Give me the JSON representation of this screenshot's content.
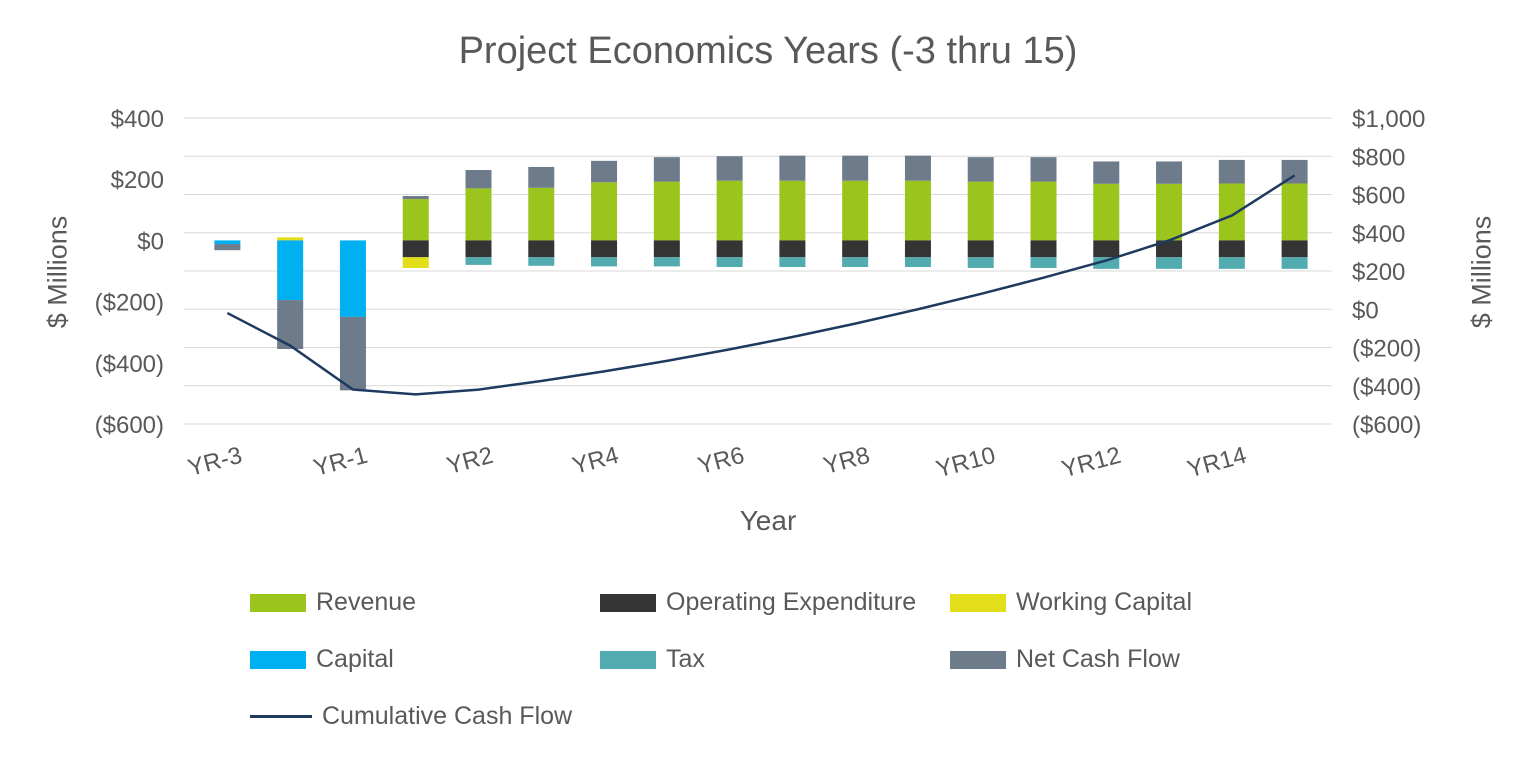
{
  "chart_data": {
    "type": "combo-stacked-bar-line",
    "title": "Project Economics Years (-3 thru 15)",
    "xlabel": "Year",
    "grid": "horizontal",
    "legend_position": "bottom-left",
    "colors": {
      "grid": "#D9D9D9",
      "text": "#595959"
    },
    "left_axis": {
      "label": "$ Millions",
      "min": -600,
      "max": 400,
      "tick_labels": [
        "$400",
        "$200",
        "$0",
        "($200)",
        "($400)",
        "($600)"
      ],
      "tick_values": [
        400,
        200,
        0,
        -200,
        -400,
        -600
      ]
    },
    "right_axis": {
      "label": "$ Millions",
      "min": -600,
      "max": 1000,
      "tick_labels": [
        "$1,000",
        "$800",
        "$600",
        "$400",
        "$200",
        "$0",
        "($200)",
        "($400)",
        "($600)"
      ],
      "tick_values": [
        1000,
        800,
        600,
        400,
        200,
        0,
        -200,
        -400,
        -600
      ]
    },
    "categories": [
      "YR-3",
      "YR-2",
      "YR-1",
      "YR1",
      "YR2",
      "YR3",
      "YR4",
      "YR5",
      "YR6",
      "YR7",
      "YR8",
      "YR9",
      "YR10",
      "YR11",
      "YR12",
      "YR13",
      "YR14",
      "YR15"
    ],
    "x_axis_labels_visible": [
      "YR-3",
      "YR-1",
      "YR2",
      "YR4",
      "YR6",
      "YR8",
      "YR10",
      "YR12",
      "YR14"
    ],
    "bar_series": [
      {
        "name": "Revenue",
        "color": "#9BC41C",
        "values": [
          0,
          0,
          0,
          135,
          170,
          172,
          190,
          192,
          195,
          195,
          195,
          195,
          192,
          192,
          185,
          185,
          186,
          186
        ]
      },
      {
        "name": "Operating Expenditure",
        "color": "#343434",
        "values": [
          0,
          0,
          0,
          -55,
          -55,
          -55,
          -55,
          -55,
          -55,
          -55,
          -55,
          -55,
          -55,
          -55,
          -55,
          -55,
          -55,
          -55
        ]
      },
      {
        "name": "Working Capital",
        "color": "#E2DF1A",
        "values": [
          0,
          10,
          0,
          -35,
          0,
          0,
          0,
          0,
          0,
          0,
          0,
          0,
          0,
          0,
          0,
          0,
          0,
          0
        ]
      },
      {
        "name": "Capital",
        "color": "#00B0F0",
        "values": [
          -12,
          -195,
          -250,
          0,
          0,
          0,
          0,
          0,
          0,
          0,
          0,
          0,
          0,
          0,
          0,
          0,
          0,
          0
        ]
      },
      {
        "name": "Tax",
        "color": "#52ABAE",
        "values": [
          0,
          0,
          0,
          0,
          -25,
          -28,
          -30,
          -30,
          -32,
          -32,
          -32,
          -32,
          -35,
          -35,
          -38,
          -38,
          -38,
          -38
        ]
      },
      {
        "name": "Net Cash Flow",
        "color": "#6D7B8B",
        "values": [
          -20,
          -160,
          -240,
          10,
          60,
          68,
          70,
          80,
          80,
          82,
          82,
          82,
          80,
          80,
          73,
          73,
          77,
          77
        ]
      }
    ],
    "line_series": {
      "name": "Cumulative Cash Flow",
      "color": "#1F3A5F",
      "axis": "right",
      "values": [
        -20,
        -190,
        -420,
        -445,
        -420,
        -375,
        -325,
        -270,
        -210,
        -145,
        -75,
        0,
        80,
        165,
        255,
        360,
        490,
        700
      ]
    }
  }
}
